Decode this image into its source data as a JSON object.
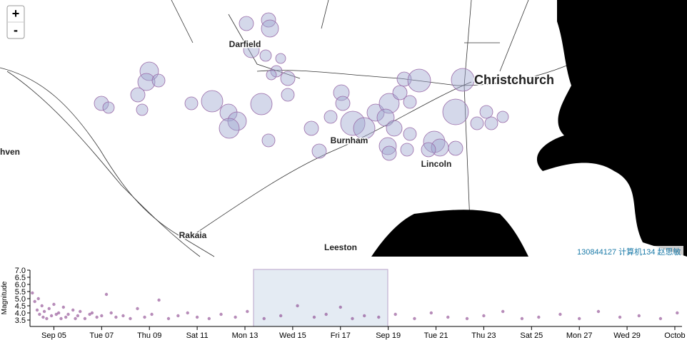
{
  "map": {
    "zoom_in": "+",
    "zoom_out": "-",
    "labels": [
      "Darfield",
      "Christchurch",
      "Burnham",
      "Lincoln",
      "Rakaia",
      "Leeston",
      "hven"
    ],
    "attribution": "130844127 计算机134 赵思敏"
  },
  "chart_data": {
    "type": "scatter",
    "y_label": "Magnitude",
    "color": "#7b2d7f",
    "x": [
      4.1,
      4.2,
      4.3,
      4.35,
      4.4,
      4.5,
      4.55,
      4.6,
      4.7,
      4.8,
      4.9,
      5.0,
      5.1,
      5.2,
      5.3,
      5.4,
      5.5,
      5.6,
      5.8,
      5.9,
      6.0,
      6.1,
      6.3,
      6.5,
      6.6,
      6.8,
      7.0,
      7.2,
      7.4,
      7.6,
      7.9,
      8.2,
      8.5,
      8.8,
      9.1,
      9.4,
      9.8,
      10.2,
      10.6,
      11.0,
      11.5,
      12.0,
      12.6,
      13.1,
      13.8,
      14.5,
      15.2,
      15.9,
      16.4,
      17.0,
      17.5,
      18.0,
      18.6,
      19.3,
      20.1,
      20.8,
      21.5,
      22.3,
      23.0,
      23.8,
      24.6,
      25.3,
      26.2,
      27.0,
      27.8,
      28.7,
      29.5,
      30.4,
      31.1
    ],
    "values": [
      5.4,
      4.8,
      4.2,
      5.0,
      3.9,
      4.5,
      3.7,
      4.1,
      3.6,
      4.3,
      3.8,
      4.6,
      3.9,
      4.0,
      3.6,
      4.4,
      3.7,
      3.9,
      4.2,
      3.6,
      3.8,
      4.1,
      3.6,
      3.9,
      4.0,
      3.7,
      3.8,
      5.3,
      4.0,
      3.7,
      3.8,
      3.6,
      4.3,
      3.7,
      3.9,
      4.9,
      3.6,
      3.8,
      4.0,
      3.7,
      3.6,
      3.9,
      3.7,
      4.1,
      3.6,
      3.8,
      4.5,
      3.7,
      3.9,
      4.4,
      3.6,
      3.8,
      3.7,
      3.9,
      3.6,
      4.0,
      3.7,
      3.6,
      3.8,
      4.1,
      3.6,
      3.7,
      3.9,
      3.6,
      4.1,
      3.7,
      3.8,
      3.6,
      4.0
    ],
    "xlim": [
      4.0,
      31.3
    ],
    "xticks": [
      {
        "value": 5,
        "label": "Sep 05"
      },
      {
        "value": 7,
        "label": "Tue 07"
      },
      {
        "value": 9,
        "label": "Thu 09"
      },
      {
        "value": 11,
        "label": "Sat 11"
      },
      {
        "value": 13,
        "label": "Mon 13"
      },
      {
        "value": 15,
        "label": "Wed 15"
      },
      {
        "value": 17,
        "label": "Fri 17"
      },
      {
        "value": 19,
        "label": "Sep 19"
      },
      {
        "value": 21,
        "label": "Tue 21"
      },
      {
        "value": 23,
        "label": "Thu 23"
      },
      {
        "value": 25,
        "label": "Sat 25"
      },
      {
        "value": 27,
        "label": "Mon 27"
      },
      {
        "value": 29,
        "label": "Wed 29"
      },
      {
        "value": 31,
        "label": "Octob"
      }
    ],
    "ylim": [
      3.05,
      7.0
    ],
    "yticks": [
      3.5,
      {
        "value": 4,
        "label": "4.0"
      },
      4.5,
      {
        "value": 5,
        "label": "5.0"
      },
      5.5,
      {
        "value": 6,
        "label": "6.0"
      },
      6.5,
      {
        "value": 7,
        "label": "7.0"
      }
    ]
  }
}
